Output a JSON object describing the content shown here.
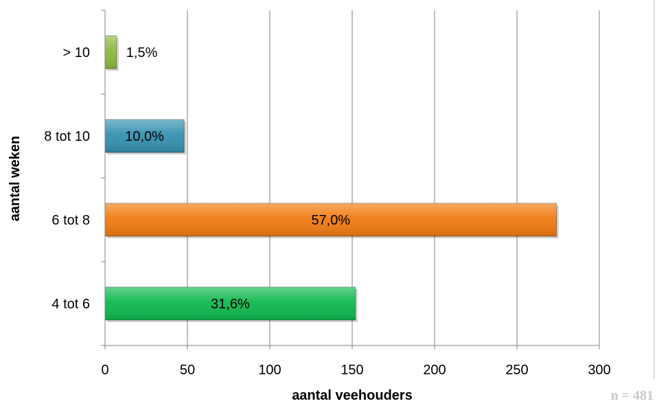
{
  "chart_data": {
    "type": "bar",
    "orientation": "horizontal",
    "categories": [
      "4 tot 6",
      "6 tot 8",
      "8 tot 10",
      "> 10"
    ],
    "values": [
      152,
      274,
      48,
      7
    ],
    "data_labels": [
      "31,6%",
      "57,0%",
      "10,0%",
      "1,5%"
    ],
    "colors": [
      "#0fb84f",
      "#f07c12",
      "#3591b0",
      "#8fb83f"
    ],
    "xlabel": "aantal veehouders",
    "ylabel": "aantal weken",
    "xlim": [
      0,
      300
    ],
    "xticks": [
      0,
      50,
      100,
      150,
      200,
      250,
      300
    ],
    "grid": "vertical",
    "legend": "none",
    "footnote": "n = 481"
  }
}
